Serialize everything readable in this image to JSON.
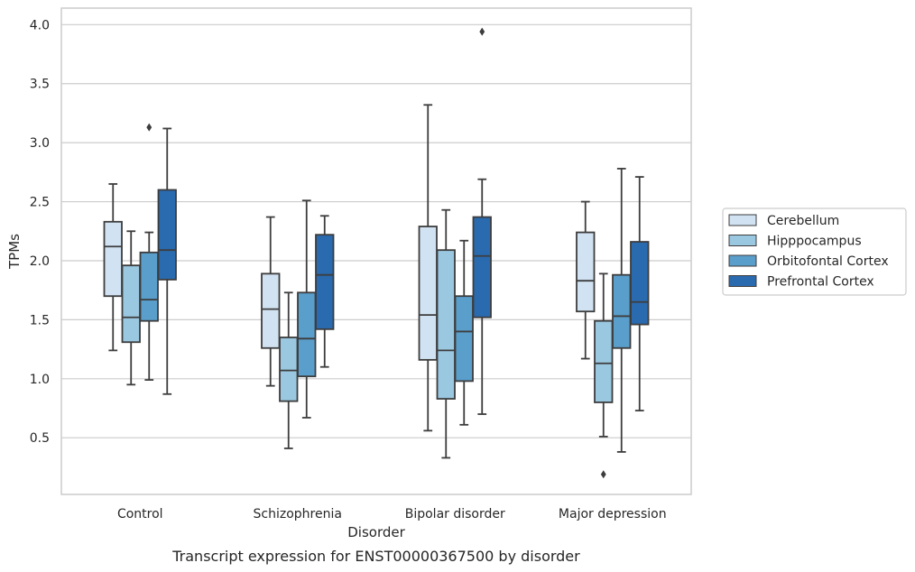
{
  "chart_data": {
    "type": "box",
    "caption": "Transcript expression for ENST00000367500 by disorder",
    "xlabel": "Disorder",
    "ylabel": "TPMs",
    "ylim": [
      0.02,
      4.14
    ],
    "yticks": [
      0.5,
      1.0,
      1.5,
      2.0,
      2.5,
      3.0,
      3.5,
      4.0
    ],
    "ytick_labels": [
      "0.5",
      "1.0",
      "1.5",
      "2.0",
      "2.5",
      "3.0",
      "3.5",
      "4.0"
    ],
    "grid": "horizontal",
    "legend_position": "outside-right",
    "categories": [
      "Control",
      "Schizophrenia",
      "Bipolar disorder",
      "Major depression"
    ],
    "series": [
      {
        "name": "Cerebellum",
        "color": "#d1e2f2",
        "boxes": [
          {
            "whislo": 1.24,
            "q1": 1.7,
            "med": 2.12,
            "q3": 2.33,
            "whishi": 2.65,
            "fliers": []
          },
          {
            "whislo": 0.94,
            "q1": 1.26,
            "med": 1.59,
            "q3": 1.89,
            "whishi": 2.37,
            "fliers": []
          },
          {
            "whislo": 0.56,
            "q1": 1.16,
            "med": 1.54,
            "q3": 2.29,
            "whishi": 3.32,
            "fliers": []
          },
          {
            "whislo": 1.17,
            "q1": 1.57,
            "med": 1.83,
            "q3": 2.24,
            "whishi": 2.5,
            "fliers": []
          }
        ]
      },
      {
        "name": "Hipppocampus",
        "color": "#9ac8e0",
        "boxes": [
          {
            "whislo": 0.95,
            "q1": 1.31,
            "med": 1.52,
            "q3": 1.96,
            "whishi": 2.25,
            "fliers": []
          },
          {
            "whislo": 0.41,
            "q1": 0.81,
            "med": 1.07,
            "q3": 1.35,
            "whishi": 1.73,
            "fliers": []
          },
          {
            "whislo": 0.33,
            "q1": 0.83,
            "med": 1.24,
            "q3": 2.09,
            "whishi": 2.43,
            "fliers": []
          },
          {
            "whislo": 0.51,
            "q1": 0.8,
            "med": 1.13,
            "q3": 1.49,
            "whishi": 1.89,
            "fliers": [
              0.19
            ]
          }
        ]
      },
      {
        "name": "Orbitofontal Cortex",
        "color": "#5a9ecb",
        "boxes": [
          {
            "whislo": 0.99,
            "q1": 1.49,
            "med": 1.67,
            "q3": 2.07,
            "whishi": 2.24,
            "fliers": [
              3.13
            ]
          },
          {
            "whislo": 0.67,
            "q1": 1.02,
            "med": 1.34,
            "q3": 1.73,
            "whishi": 2.51,
            "fliers": []
          },
          {
            "whislo": 0.61,
            "q1": 0.98,
            "med": 1.4,
            "q3": 1.7,
            "whishi": 2.17,
            "fliers": []
          },
          {
            "whislo": 0.38,
            "q1": 1.26,
            "med": 1.53,
            "q3": 1.88,
            "whishi": 2.78,
            "fliers": []
          }
        ]
      },
      {
        "name": "Prefrontal Cortex",
        "color": "#2a6aaf",
        "boxes": [
          {
            "whislo": 0.87,
            "q1": 1.84,
            "med": 2.09,
            "q3": 2.6,
            "whishi": 3.12,
            "fliers": []
          },
          {
            "whislo": 1.1,
            "q1": 1.42,
            "med": 1.88,
            "q3": 2.22,
            "whishi": 2.38,
            "fliers": []
          },
          {
            "whislo": 0.7,
            "q1": 1.52,
            "med": 2.04,
            "q3": 2.37,
            "whishi": 2.69,
            "fliers": [
              3.94
            ]
          },
          {
            "whislo": 0.73,
            "q1": 1.46,
            "med": 1.65,
            "q3": 2.16,
            "whishi": 2.71,
            "fliers": []
          }
        ]
      }
    ]
  }
}
